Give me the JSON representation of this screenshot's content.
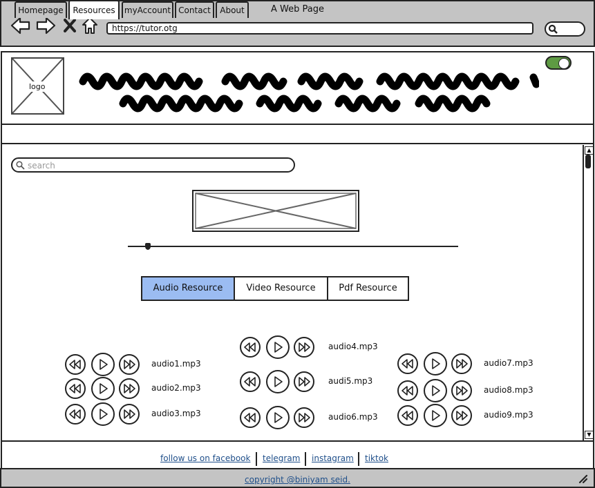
{
  "window": {
    "title": "A Web Page"
  },
  "browser": {
    "url": "https://tutor.otg",
    "nav_icons": [
      "back-arrow-icon",
      "forward-arrow-icon",
      "close-x-icon",
      "home-icon"
    ],
    "search_icon": "search-icon"
  },
  "header": {
    "logo_label": "logo",
    "toggle_on": true,
    "toggle_color": "#5e9a43"
  },
  "tabs": [
    {
      "label": "Homepage",
      "active": false
    },
    {
      "label": "Resources",
      "active": true
    },
    {
      "label": "myAccount",
      "active": false
    },
    {
      "label": "Contact",
      "active": false
    },
    {
      "label": "About",
      "active": false
    }
  ],
  "search": {
    "placeholder": "search"
  },
  "player": {
    "progress": 0.06
  },
  "resources": {
    "buttons": [
      {
        "label": "Audio Resource",
        "selected": true
      },
      {
        "label": "Video Resource",
        "selected": false
      },
      {
        "label": "Pdf Resource",
        "selected": false
      }
    ],
    "selected_color": "#9bbcf2"
  },
  "audio": [
    {
      "name": "audio1.mp3"
    },
    {
      "name": "audio2.mp3"
    },
    {
      "name": "audio3.mp3"
    },
    {
      "name": "audio4.mp3"
    },
    {
      "name": "audi5.mp3"
    },
    {
      "name": "audio6.mp3"
    },
    {
      "name": "audio7.mp3"
    },
    {
      "name": "audio8.mp3"
    },
    {
      "name": "audio9.mp3"
    }
  ],
  "footer": {
    "links": [
      "follow us on  facebook",
      "telegram",
      "instagram",
      "tiktok"
    ],
    "copyright": "copyright @biniyam seid.",
    "link_color": "#1f4f8a"
  }
}
